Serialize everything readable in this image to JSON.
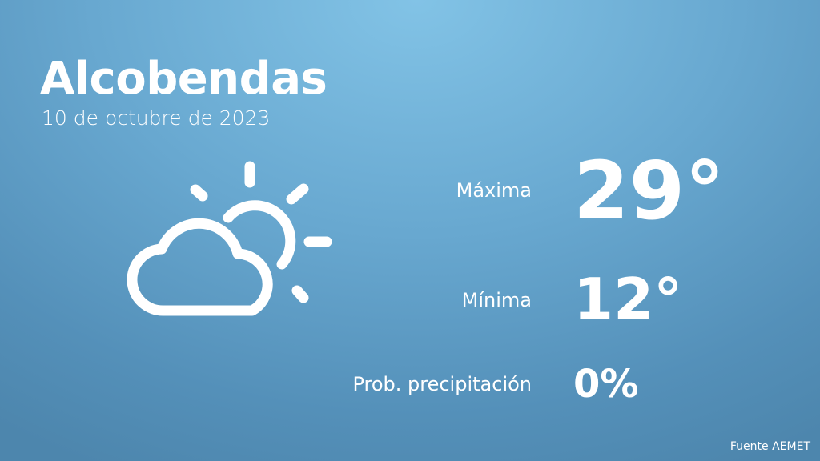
{
  "city": "Alcobendas",
  "date": "10 de octubre de 2023",
  "weather_icon": "partly-cloudy-icon",
  "rows": [
    {
      "label": "Máxima",
      "value": "29°"
    },
    {
      "label": "Mínima",
      "value": "12°"
    },
    {
      "label": "Prob. precipitación",
      "value": "0%"
    }
  ],
  "source": "Fuente AEMET",
  "colors": {
    "background_top": "#82c3e6",
    "background_edge": "#4d86ad",
    "text": "#ffffff"
  }
}
